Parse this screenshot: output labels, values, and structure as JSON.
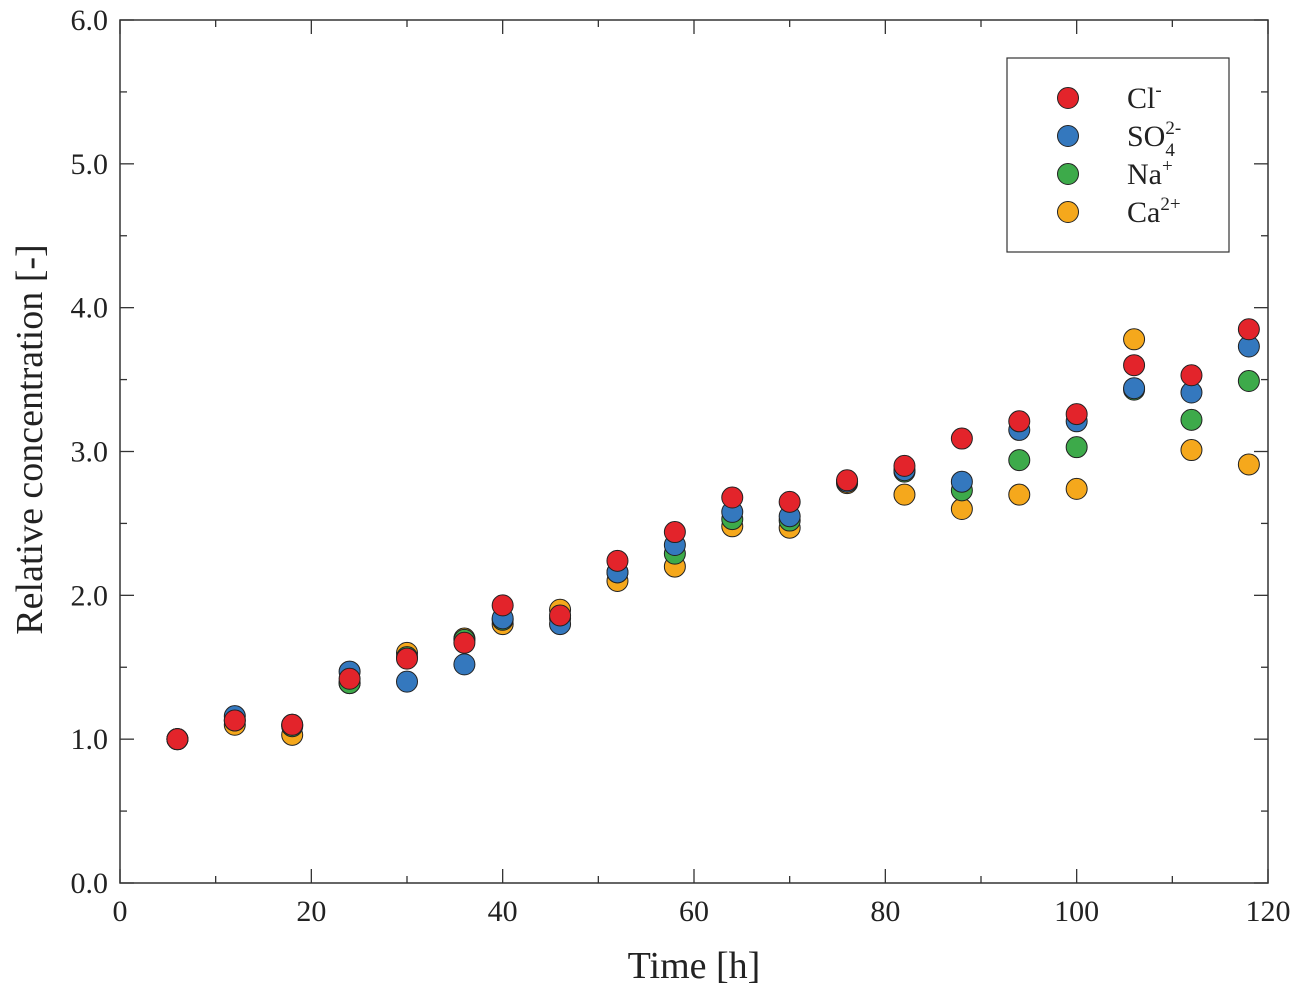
{
  "chart_data": {
    "type": "scatter",
    "title": "",
    "xlabel": "Time [h]",
    "ylabel": "Relative concentration [-]",
    "xlim": [
      0,
      120
    ],
    "ylim": [
      0,
      6
    ],
    "xticks": [
      "0",
      "20",
      "40",
      "60",
      "80",
      "100",
      "120"
    ],
    "yticks": [
      "0.0",
      "1.0",
      "2.0",
      "3.0",
      "4.0",
      "5.0",
      "6.0"
    ],
    "grid": false,
    "legend_position": "top-right",
    "x": [
      6,
      12,
      18,
      24,
      30,
      36,
      40,
      46,
      52,
      58,
      64,
      70,
      76,
      82,
      88,
      94,
      100,
      106,
      112,
      118
    ],
    "series": [
      {
        "name": "Ca2+",
        "legend": {
          "base": "Ca",
          "sup": "2+",
          "sub": ""
        },
        "color": "#F5A81C",
        "values": [
          1.0,
          1.1,
          1.03,
          1.39,
          1.6,
          1.7,
          1.8,
          1.9,
          2.1,
          2.2,
          2.48,
          2.47,
          2.78,
          2.7,
          2.6,
          2.7,
          2.74,
          3.78,
          3.01,
          2.91
        ]
      },
      {
        "name": "Na+",
        "legend": {
          "base": "Na",
          "sup": "+",
          "sub": ""
        },
        "color": "#3DAA4A",
        "values": [
          1.0,
          1.13,
          1.09,
          1.39,
          1.57,
          1.69,
          1.83,
          1.84,
          2.16,
          2.29,
          2.53,
          2.52,
          2.79,
          2.86,
          2.73,
          2.94,
          3.03,
          3.43,
          3.22,
          3.49
        ]
      },
      {
        "name": "SO42-",
        "legend": {
          "base": "SO",
          "sup": "2-",
          "sub": "4"
        },
        "color": "#3478BE",
        "values": [
          1.0,
          1.16,
          1.1,
          1.47,
          1.4,
          1.52,
          1.84,
          1.8,
          2.16,
          2.35,
          2.58,
          2.55,
          2.79,
          2.87,
          2.79,
          3.15,
          3.21,
          3.44,
          3.41,
          3.73
        ]
      },
      {
        "name": "Cl-",
        "legend": {
          "base": "Cl",
          "sup": "-",
          "sub": ""
        },
        "color": "#E3242B",
        "values": [
          1.0,
          1.13,
          1.1,
          1.42,
          1.56,
          1.67,
          1.93,
          1.86,
          2.24,
          2.44,
          2.68,
          2.65,
          2.8,
          2.9,
          3.09,
          3.21,
          3.26,
          3.6,
          3.53,
          3.85
        ]
      }
    ]
  }
}
